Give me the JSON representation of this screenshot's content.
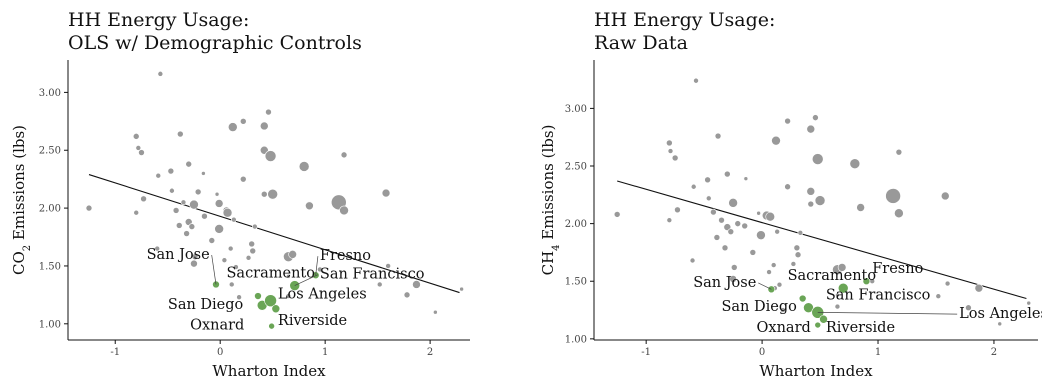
{
  "chart_data": [
    {
      "type": "scatter",
      "title": [
        "HH Energy Usage:",
        "OLS w/ Demographic Controls"
      ],
      "xlabel": "Wharton Index",
      "ylabel": "CO2 Emissions (lbs)",
      "ylabel_parts": [
        "CO",
        "2",
        " Emissions (lbs)"
      ],
      "xlim": [
        -1.45,
        2.38
      ],
      "ylim": [
        0.86,
        3.28
      ],
      "x_ticks": [
        -1,
        0,
        1,
        2
      ],
      "y_ticks": [
        1.0,
        1.5,
        2.0,
        2.5,
        3.0
      ],
      "y_tick_labels": [
        "1.00",
        "1.50",
        "2.00",
        "2.50",
        "3.00"
      ],
      "fit_line": {
        "x": [
          -1.25,
          2.28
        ],
        "y": [
          2.29,
          1.27
        ]
      },
      "grey_points": [
        [
          -1.25,
          2.0,
          3
        ],
        [
          -0.8,
          2.62,
          3
        ],
        [
          -0.78,
          2.52,
          2.5
        ],
        [
          -0.75,
          2.48,
          3
        ],
        [
          -0.8,
          1.96,
          2.5
        ],
        [
          -0.73,
          2.08,
          3
        ],
        [
          -0.57,
          3.16,
          2.5
        ],
        [
          -0.59,
          2.28,
          2.5
        ],
        [
          -0.6,
          1.65,
          2.5
        ],
        [
          -0.47,
          2.32,
          3
        ],
        [
          -0.46,
          2.15,
          2.5
        ],
        [
          -0.38,
          2.64,
          3
        ],
        [
          -0.42,
          1.98,
          3
        ],
        [
          -0.35,
          2.05,
          2.5
        ],
        [
          -0.39,
          1.85,
          3
        ],
        [
          -0.3,
          2.38,
          3
        ],
        [
          -0.3,
          1.88,
          3.5
        ],
        [
          -0.32,
          1.78,
          3
        ],
        [
          -0.25,
          2.03,
          4.5
        ],
        [
          -0.27,
          1.84,
          3
        ],
        [
          -0.24,
          1.58,
          3
        ],
        [
          -0.25,
          1.52,
          3.5
        ],
        [
          -0.21,
          2.14,
          3
        ],
        [
          -0.16,
          2.3,
          2
        ],
        [
          -0.15,
          1.93,
          3
        ],
        [
          -0.08,
          1.72,
          3
        ],
        [
          -0.03,
          2.12,
          2
        ],
        [
          -0.01,
          2.04,
          4
        ],
        [
          -0.01,
          1.82,
          4.5
        ],
        [
          0.04,
          1.55,
          2.5
        ],
        [
          0.06,
          1.98,
          3.5
        ],
        [
          0.07,
          1.96,
          4.5
        ],
        [
          0.1,
          1.65,
          2.5
        ],
        [
          0.11,
          1.34,
          2.5
        ],
        [
          0.12,
          2.7,
          4.5
        ],
        [
          0.13,
          1.9,
          2.5
        ],
        [
          0.15,
          1.49,
          2.5
        ],
        [
          0.18,
          1.23,
          2.5
        ],
        [
          0.22,
          2.75,
          3
        ],
        [
          0.22,
          2.25,
          3
        ],
        [
          0.27,
          1.57,
          2.5
        ],
        [
          0.3,
          1.69,
          3
        ],
        [
          0.31,
          1.63,
          3
        ],
        [
          0.33,
          1.84,
          2.5
        ],
        [
          0.42,
          2.12,
          3
        ],
        [
          0.42,
          2.5,
          4
        ],
        [
          0.42,
          2.71,
          4
        ],
        [
          0.46,
          2.83,
          3
        ],
        [
          0.48,
          2.45,
          5.5
        ],
        [
          0.5,
          2.12,
          5
        ],
        [
          0.65,
          1.41,
          2
        ],
        [
          0.65,
          1.24,
          2.5
        ],
        [
          0.65,
          1.58,
          5
        ],
        [
          0.69,
          1.6,
          4
        ],
        [
          0.8,
          2.36,
          5
        ],
        [
          0.85,
          2.02,
          4
        ],
        [
          0.95,
          1.47,
          2.5
        ],
        [
          1.13,
          2.05,
          7.5
        ],
        [
          1.18,
          1.98,
          4.5
        ],
        [
          1.18,
          2.46,
          3
        ],
        [
          1.58,
          2.13,
          4
        ],
        [
          1.6,
          1.5,
          2.5
        ],
        [
          1.52,
          1.34,
          2.5
        ],
        [
          1.78,
          1.25,
          3
        ],
        [
          1.87,
          1.34,
          4
        ],
        [
          2.05,
          1.1,
          2
        ],
        [
          2.3,
          1.3,
          2
        ]
      ],
      "green_points": [
        {
          "name": "San Jose",
          "x": -0.04,
          "y": 1.34,
          "r": 3.5
        },
        {
          "name": "Fresno",
          "x": 0.91,
          "y": 1.42,
          "r": 3.5
        },
        {
          "name": "Sacramento",
          "x": 0.36,
          "y": 1.24,
          "r": 3.5
        },
        {
          "name": "San Francisco",
          "x": 0.71,
          "y": 1.33,
          "r": 5
        },
        {
          "name": "San Diego",
          "x": 0.4,
          "y": 1.16,
          "r": 5
        },
        {
          "name": "Los Angeles",
          "x": 0.48,
          "y": 1.2,
          "r": 6
        },
        {
          "name": "Riverside",
          "x": 0.53,
          "y": 1.13,
          "r": 4
        },
        {
          "name": "Oxnard",
          "x": 0.49,
          "y": 0.98,
          "r": 3
        }
      ],
      "labels": [
        {
          "name": "San Jose",
          "lx": -0.1,
          "ly": 1.56,
          "anchor": "end",
          "leader": true
        },
        {
          "name": "Fresno",
          "lx": 0.95,
          "ly": 1.55,
          "anchor": "start",
          "leader": true
        },
        {
          "name": "Sacramento",
          "lx": 0.06,
          "ly": 1.4,
          "anchor": "start",
          "leader": false
        },
        {
          "name": "San Francisco",
          "lx": 0.95,
          "ly": 1.39,
          "anchor": "start",
          "leader": true
        },
        {
          "name": "San Diego",
          "lx": 0.22,
          "ly": 1.13,
          "anchor": "end",
          "leader": false
        },
        {
          "name": "Los Angeles",
          "lx": 0.55,
          "ly": 1.22,
          "anchor": "start",
          "leader": false
        },
        {
          "name": "Riverside",
          "lx": 0.55,
          "ly": 0.99,
          "anchor": "start",
          "leader": false
        },
        {
          "name": "Oxnard",
          "lx": 0.23,
          "ly": 0.95,
          "anchor": "end",
          "leader": false
        }
      ]
    },
    {
      "type": "scatter",
      "title": [
        "HH Energy Usage:",
        "Raw Data"
      ],
      "xlabel": "Wharton Index",
      "ylabel": "CH4 Emissions (lbs)",
      "ylabel_parts": [
        "CH",
        "4",
        " Emissions (lbs)"
      ],
      "xlim": [
        -1.45,
        2.38
      ],
      "ylim": [
        0.99,
        3.42
      ],
      "x_ticks": [
        -1,
        0,
        1,
        2
      ],
      "y_ticks": [
        1.0,
        1.5,
        2.0,
        2.5,
        3.0
      ],
      "y_tick_labels": [
        "1.00",
        "1.50",
        "2.00",
        "2.50",
        "3.00"
      ],
      "fit_line": {
        "x": [
          -1.25,
          2.28
        ],
        "y": [
          2.37,
          1.35
        ]
      },
      "grey_points": [
        [
          -1.25,
          2.08,
          3
        ],
        [
          -0.8,
          2.7,
          3
        ],
        [
          -0.79,
          2.63,
          2.5
        ],
        [
          -0.75,
          2.57,
          3
        ],
        [
          -0.8,
          2.03,
          2.5
        ],
        [
          -0.73,
          2.12,
          3
        ],
        [
          -0.57,
          3.24,
          2.5
        ],
        [
          -0.59,
          2.32,
          2.5
        ],
        [
          -0.6,
          1.68,
          2.5
        ],
        [
          -0.47,
          2.38,
          3
        ],
        [
          -0.46,
          2.22,
          2.5
        ],
        [
          -0.38,
          2.76,
          3
        ],
        [
          -0.42,
          2.1,
          3
        ],
        [
          -0.35,
          2.03,
          3
        ],
        [
          -0.39,
          1.88,
          3
        ],
        [
          -0.3,
          2.43,
          3
        ],
        [
          -0.3,
          1.97,
          3.5
        ],
        [
          -0.32,
          1.79,
          3
        ],
        [
          -0.25,
          2.18,
          4.5
        ],
        [
          -0.27,
          1.93,
          3
        ],
        [
          -0.24,
          1.62,
          3
        ],
        [
          -0.25,
          1.52,
          3.5
        ],
        [
          -0.21,
          2.0,
          3
        ],
        [
          -0.14,
          2.39,
          2
        ],
        [
          -0.15,
          1.98,
          3
        ],
        [
          -0.08,
          1.75,
          3
        ],
        [
          -0.03,
          2.09,
          2
        ],
        [
          -0.01,
          1.9,
          4.5
        ],
        [
          0.04,
          2.07,
          4.5
        ],
        [
          0.06,
          1.58,
          2.5
        ],
        [
          0.07,
          2.06,
          4.5
        ],
        [
          0.1,
          1.64,
          2.5
        ],
        [
          0.11,
          1.44,
          2.5
        ],
        [
          0.12,
          2.72,
          4.5
        ],
        [
          0.13,
          1.93,
          2.5
        ],
        [
          0.15,
          1.47,
          2.5
        ],
        [
          0.18,
          1.25,
          2.5
        ],
        [
          0.22,
          2.89,
          3
        ],
        [
          0.22,
          2.32,
          3
        ],
        [
          0.27,
          1.65,
          2.5
        ],
        [
          0.3,
          1.79,
          3
        ],
        [
          0.31,
          1.73,
          3
        ],
        [
          0.33,
          1.92,
          2.5
        ],
        [
          0.42,
          2.17,
          3
        ],
        [
          0.42,
          2.28,
          4
        ],
        [
          0.42,
          2.82,
          4
        ],
        [
          0.46,
          2.92,
          3
        ],
        [
          0.48,
          2.56,
          5.5
        ],
        [
          0.5,
          2.2,
          5
        ],
        [
          0.65,
          1.38,
          2
        ],
        [
          0.65,
          1.28,
          2.5
        ],
        [
          0.65,
          1.6,
          5
        ],
        [
          0.69,
          1.62,
          4
        ],
        [
          0.8,
          2.52,
          5
        ],
        [
          0.85,
          2.14,
          4
        ],
        [
          0.95,
          1.5,
          2.5
        ],
        [
          1.13,
          2.24,
          7.5
        ],
        [
          1.18,
          2.09,
          4.5
        ],
        [
          1.18,
          2.62,
          3
        ],
        [
          1.58,
          2.24,
          4
        ],
        [
          1.6,
          1.48,
          2.5
        ],
        [
          1.52,
          1.37,
          2.5
        ],
        [
          1.78,
          1.27,
          3
        ],
        [
          1.87,
          1.44,
          4
        ],
        [
          2.05,
          1.13,
          2
        ],
        [
          2.3,
          1.31,
          2
        ]
      ],
      "green_points": [
        {
          "name": "San Jose",
          "x": 0.08,
          "y": 1.43,
          "r": 3.5
        },
        {
          "name": "Fresno",
          "x": 0.9,
          "y": 1.5,
          "r": 3.5
        },
        {
          "name": "Sacramento",
          "x": 0.35,
          "y": 1.35,
          "r": 3.5
        },
        {
          "name": "San Francisco",
          "x": 0.7,
          "y": 1.44,
          "r": 5
        },
        {
          "name": "San Diego",
          "x": 0.4,
          "y": 1.27,
          "r": 5
        },
        {
          "name": "Los Angeles",
          "x": 0.48,
          "y": 1.23,
          "r": 6
        },
        {
          "name": "Riverside",
          "x": 0.53,
          "y": 1.17,
          "r": 4
        },
        {
          "name": "Oxnard",
          "x": 0.48,
          "y": 1.12,
          "r": 3
        }
      ],
      "labels": [
        {
          "name": "San Jose",
          "lx": -0.05,
          "ly": 1.45,
          "anchor": "end",
          "leader": true
        },
        {
          "name": "Fresno",
          "lx": 0.95,
          "ly": 1.57,
          "anchor": "start",
          "leader": false
        },
        {
          "name": "Sacramento",
          "lx": 0.22,
          "ly": 1.51,
          "anchor": "start",
          "leader": false
        },
        {
          "name": "San Francisco",
          "lx": 0.55,
          "ly": 1.34,
          "anchor": "start",
          "leader": false
        },
        {
          "name": "San Diego",
          "lx": 0.3,
          "ly": 1.24,
          "anchor": "end",
          "leader": false
        },
        {
          "name": "Los Angeles",
          "lx": 1.7,
          "ly": 1.18,
          "anchor": "start",
          "leader": true
        },
        {
          "name": "Riverside",
          "lx": 0.55,
          "ly": 1.06,
          "anchor": "start",
          "leader": false
        },
        {
          "name": "Oxnard",
          "lx": 0.42,
          "ly": 1.06,
          "anchor": "end",
          "leader": false
        }
      ]
    }
  ]
}
